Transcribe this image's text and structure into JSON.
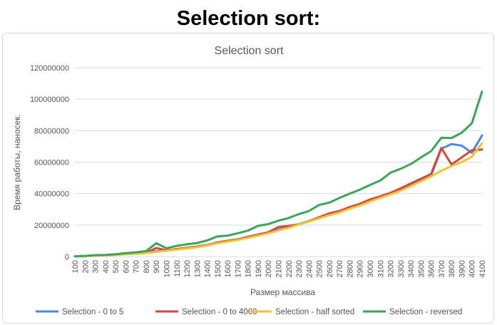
{
  "page": {
    "heading": "Selection sort:"
  },
  "colors": {
    "series": [
      "#4a86e8",
      "#d24a3b",
      "#f1c232",
      "#3aa655"
    ],
    "grid": "#d9d9d9",
    "text": "#555555"
  },
  "chart_data": {
    "type": "line",
    "title": "Selection sort",
    "xlabel": "Размер массива",
    "ylabel": "Время работы, наносек.",
    "ylim": [
      0,
      120000000
    ],
    "yticks": [
      "0",
      "20000000",
      "40000000",
      "60000000",
      "80000000",
      "100000000",
      "120000000"
    ],
    "grid": "horizontal",
    "legend_position": "bottom",
    "categories": [
      "100",
      "200",
      "300",
      "400",
      "500",
      "600",
      "700",
      "800",
      "900",
      "1000",
      "1100",
      "1200",
      "1300",
      "1400",
      "1500",
      "1600",
      "1700",
      "1800",
      "1900",
      "2000",
      "2100",
      "2200",
      "2300",
      "2400",
      "2500",
      "2600",
      "2700",
      "2800",
      "2900",
      "3000",
      "3100",
      "3200",
      "3300",
      "3400",
      "3500",
      "3600",
      "3700",
      "3800",
      "3900",
      "4000",
      "4100"
    ],
    "series": [
      {
        "name": "Selection - 0 to 5",
        "values": [
          200000,
          400000,
          700000,
          900000,
          1200000,
          1600000,
          2000000,
          2400000,
          3500000,
          3800000,
          4700000,
          5400000,
          6200000,
          7300000,
          8800000,
          9800000,
          10800000,
          12300000,
          13700000,
          15200000,
          17200000,
          18600000,
          20600000,
          22500000,
          24500000,
          26700000,
          28300000,
          30700000,
          32700000,
          35500000,
          37800000,
          40000000,
          42300000,
          45500000,
          48300000,
          51500000,
          68500000,
          71500000,
          70500000,
          66000000,
          77000000
        ]
      },
      {
        "name": "Selection - 0 to 4000",
        "values": [
          200000,
          400000,
          700000,
          900000,
          1200000,
          1600000,
          2000000,
          2400000,
          5500000,
          4000000,
          4800000,
          5600000,
          6400000,
          7300000,
          9000000,
          10000000,
          10900000,
          12600000,
          14000000,
          15500000,
          18800000,
          19500000,
          20500000,
          22500000,
          25000000,
          27500000,
          29000000,
          31500000,
          33500000,
          36300000,
          38300000,
          40500000,
          43300000,
          46500000,
          49500000,
          52500000,
          69000000,
          58500000,
          63000000,
          67500000,
          68000000
        ]
      },
      {
        "name": "Selection - half sorted",
        "values": [
          100000,
          300000,
          600000,
          800000,
          1100000,
          1400000,
          1800000,
          2200000,
          3000000,
          3700000,
          4400000,
          5200000,
          6000000,
          7000000,
          8500000,
          9500000,
          10500000,
          11900000,
          13300000,
          14800000,
          16600000,
          18300000,
          20400000,
          22300000,
          24300000,
          26300000,
          28000000,
          30400000,
          32400000,
          35000000,
          37300000,
          39500000,
          41800000,
          44800000,
          47800000,
          51000000,
          54500000,
          57500000,
          60000000,
          63500000,
          72000000
        ]
      },
      {
        "name": "Selection - reversed",
        "values": [
          200000,
          400000,
          900000,
          1100000,
          1500000,
          2200000,
          2700000,
          3500000,
          8500000,
          5300000,
          6800000,
          7800000,
          8600000,
          10300000,
          12800000,
          13300000,
          14800000,
          16500000,
          19500000,
          20600000,
          22800000,
          24500000,
          27000000,
          29000000,
          32800000,
          34300000,
          37300000,
          40000000,
          42500000,
          45500000,
          48300000,
          53300000,
          55800000,
          58800000,
          63000000,
          67000000,
          75500000,
          75300000,
          78700000,
          84700000,
          104800000
        ]
      }
    ]
  }
}
